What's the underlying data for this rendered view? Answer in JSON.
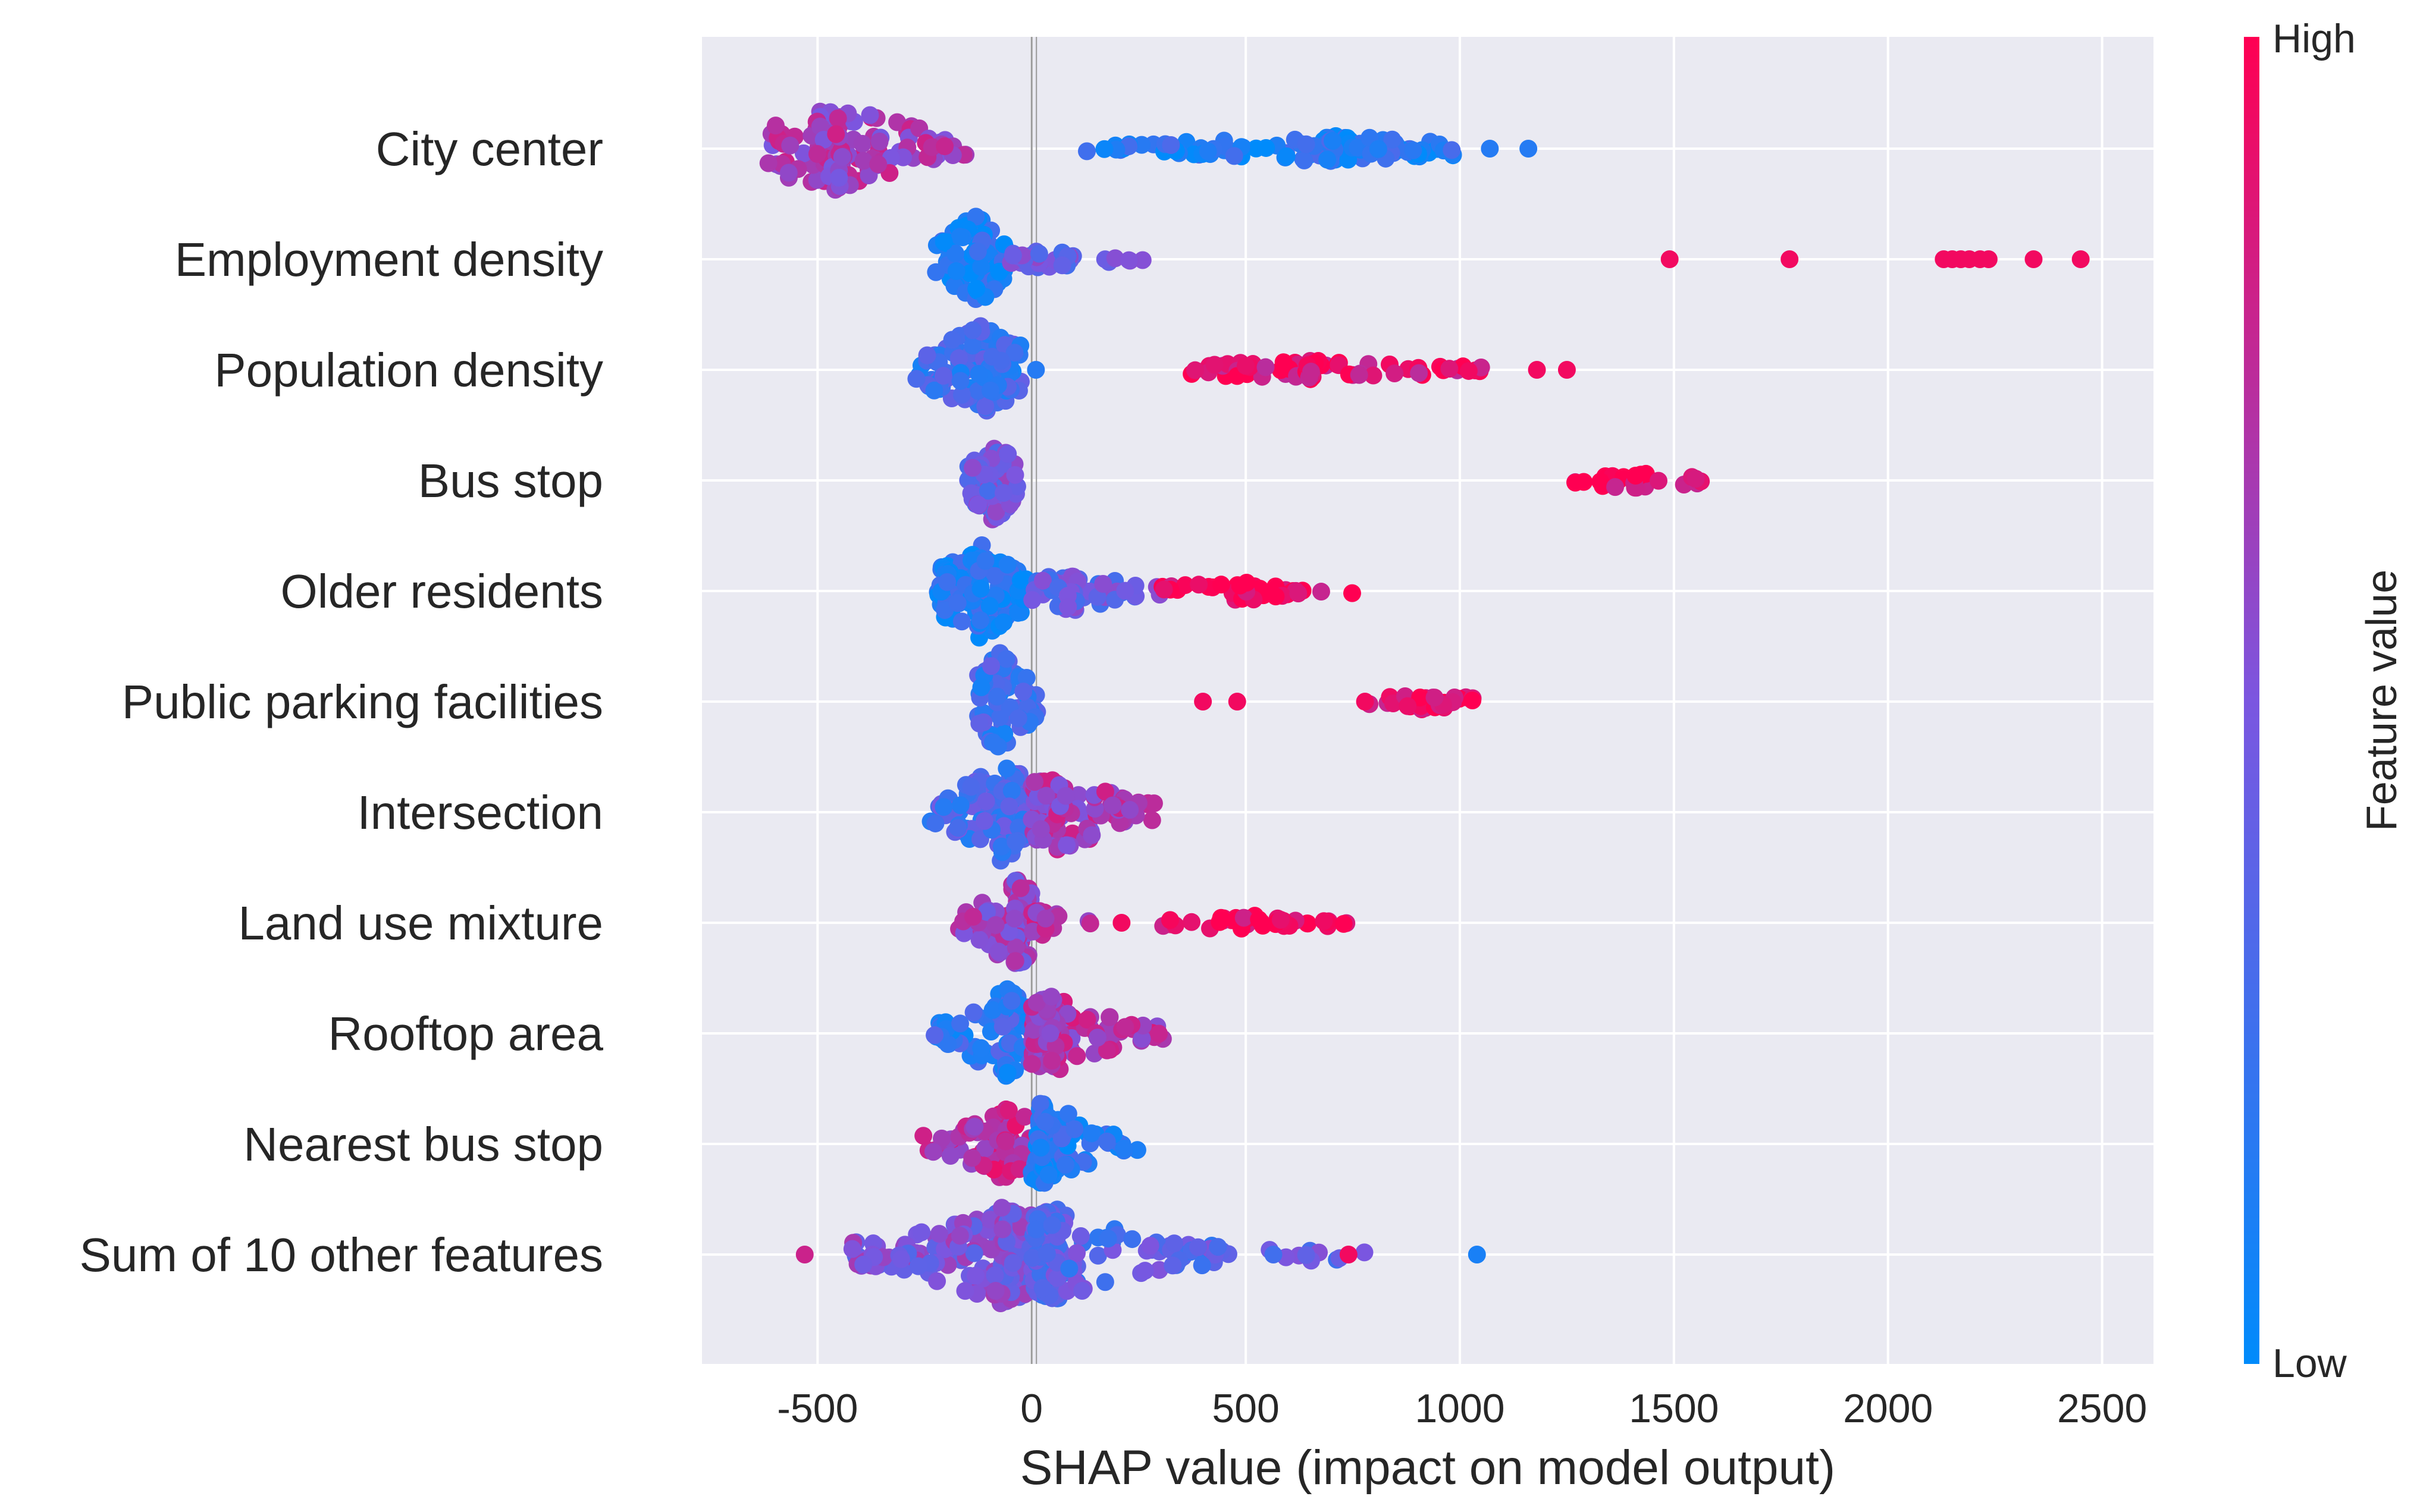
{
  "chart_data": {
    "type": "scatter",
    "subtype": "shap-beeswarm",
    "xlabel": "SHAP value (impact on model output)",
    "xlim": [
      -770,
      2620
    ],
    "xticks": [
      -500,
      0,
      500,
      1000,
      1500,
      2000,
      2500
    ],
    "xtick_labels": [
      "-500",
      "0",
      "500",
      "1000",
      "1500",
      "2000",
      "2500"
    ],
    "grid": true,
    "colorbar": {
      "title": "Feature value",
      "high_label": "High",
      "low_label": "Low",
      "high_color": "#ff0052",
      "low_color": "#008bfb"
    },
    "features": [
      {
        "name": "City center",
        "groups": [
          {
            "min": -620,
            "max": -150,
            "center": -450,
            "n": 130,
            "f": 0.65,
            "spread": 0.26
          },
          {
            "min": 120,
            "max": 1000,
            "center": 700,
            "n": 120,
            "f": 0.15,
            "spread": 0.08
          },
          {
            "x": 1070,
            "f": 0.15
          },
          {
            "x": 1160,
            "f": 0.15
          }
        ]
      },
      {
        "name": "Employment density",
        "groups": [
          {
            "min": -230,
            "max": -60,
            "center": -130,
            "n": 90,
            "f": 0.12,
            "spread": 0.28
          },
          {
            "min": -60,
            "max": 310,
            "center": 20,
            "n": 40,
            "f": 0.45,
            "spread": 0.05
          },
          {
            "x": 1490,
            "f": 0.95
          },
          {
            "x": 1770,
            "f": 0.95
          },
          {
            "x": 2130,
            "f": 0.95
          },
          {
            "x": 2150,
            "f": 0.95
          },
          {
            "x": 2170,
            "f": 0.95
          },
          {
            "x": 2190,
            "f": 0.95
          },
          {
            "x": 2215,
            "f": 0.95
          },
          {
            "x": 2235,
            "f": 0.95
          },
          {
            "x": 2340,
            "f": 0.95
          },
          {
            "x": 2450,
            "f": 0.95
          }
        ]
      },
      {
        "name": "Population density",
        "groups": [
          {
            "min": -270,
            "max": -20,
            "center": -120,
            "n": 120,
            "f": 0.25,
            "spread": 0.28
          },
          {
            "x": 10,
            "f": 0.15
          },
          {
            "min": 350,
            "max": 1050,
            "center": 650,
            "n": 70,
            "f": 0.9,
            "spread": 0.06
          },
          {
            "x": 1180,
            "f": 0.95
          },
          {
            "x": 1250,
            "f": 0.95
          }
        ]
      },
      {
        "name": "Bus stop",
        "groups": [
          {
            "min": -150,
            "max": -30,
            "center": -90,
            "n": 90,
            "f": 0.45,
            "spread": 0.26
          },
          {
            "min": 1260,
            "max": 1580,
            "center": 1400,
            "n": 28,
            "f": 0.95,
            "spread": 0.05
          }
        ]
      },
      {
        "name": "Older residents",
        "groups": [
          {
            "min": -220,
            "max": 0,
            "center": -120,
            "n": 150,
            "f": 0.12,
            "spread": 0.3
          },
          {
            "min": 0,
            "max": 300,
            "center": 100,
            "n": 60,
            "f": 0.4,
            "spread": 0.12
          },
          {
            "min": 300,
            "max": 760,
            "center": 500,
            "n": 35,
            "f": 0.95,
            "spread": 0.06
          }
        ]
      },
      {
        "name": "Public parking facilities",
        "groups": [
          {
            "min": -140,
            "max": 20,
            "center": -75,
            "n": 80,
            "f": 0.25,
            "spread": 0.3
          },
          {
            "x": 400,
            "f": 0.95
          },
          {
            "x": 480,
            "f": 0.95
          },
          {
            "min": 770,
            "max": 1030,
            "center": 920,
            "n": 30,
            "f": 0.95,
            "spread": 0.05
          }
        ]
      },
      {
        "name": "Intersection",
        "groups": [
          {
            "min": -240,
            "max": 0,
            "center": -70,
            "n": 120,
            "f": 0.3,
            "spread": 0.3
          },
          {
            "min": 0,
            "max": 310,
            "center": 60,
            "n": 110,
            "f": 0.65,
            "spread": 0.24
          }
        ]
      },
      {
        "name": "Land use mixture",
        "groups": [
          {
            "min": -170,
            "max": 0,
            "center": -40,
            "n": 100,
            "f": 0.6,
            "spread": 0.28
          },
          {
            "min": 0,
            "max": 140,
            "center": 20,
            "n": 30,
            "f": 0.7,
            "spread": 0.08
          },
          {
            "x": 210,
            "f": 0.95
          },
          {
            "min": 300,
            "max": 740,
            "center": 500,
            "n": 40,
            "f": 0.95,
            "spread": 0.05
          }
        ]
      },
      {
        "name": "Rooftop area",
        "groups": [
          {
            "min": -230,
            "max": 0,
            "center": -60,
            "n": 90,
            "f": 0.2,
            "spread": 0.28
          },
          {
            "min": 0,
            "max": 310,
            "center": 50,
            "n": 130,
            "f": 0.7,
            "spread": 0.24
          }
        ]
      },
      {
        "name": "Nearest bus stop",
        "groups": [
          {
            "min": -260,
            "max": 0,
            "center": -60,
            "n": 100,
            "f": 0.75,
            "spread": 0.22
          },
          {
            "min": 0,
            "max": 250,
            "center": 30,
            "n": 90,
            "f": 0.15,
            "spread": 0.26
          }
        ]
      },
      {
        "name": "Sum of 10 other features",
        "groups": [
          {
            "x": -530,
            "f": 0.8
          },
          {
            "min": -430,
            "max": 0,
            "center": -70,
            "n": 200,
            "f": 0.5,
            "spread": 0.3
          },
          {
            "min": 0,
            "max": 460,
            "center": 60,
            "n": 170,
            "f": 0.35,
            "spread": 0.28
          },
          {
            "min": 500,
            "max": 790,
            "center": 650,
            "n": 12,
            "f": 0.4,
            "spread": 0.05
          },
          {
            "x": 740,
            "f": 0.95
          },
          {
            "x": 1040,
            "f": 0.1
          }
        ]
      }
    ]
  }
}
